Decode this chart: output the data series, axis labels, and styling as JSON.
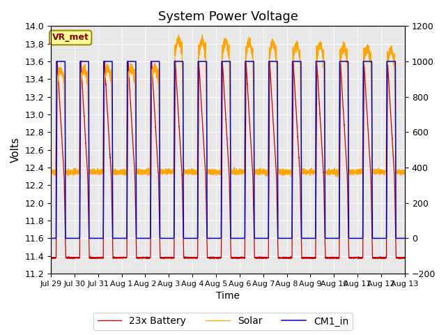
{
  "title": "System Power Voltage",
  "xlabel": "Time",
  "ylabel": "Volts",
  "ylim_left": [
    11.2,
    14.0
  ],
  "ylim_right": [
    -200,
    1200
  ],
  "plot_bg_color": "#e8e8e8",
  "colors": {
    "battery": "#cc0000",
    "solar": "#ffa500",
    "cm1": "#0000cc"
  },
  "legend_labels": [
    "23x Battery",
    "Solar",
    "CM1_in"
  ],
  "annotation_text": "VR_met",
  "annotation_box_color": "#ffff99",
  "annotation_box_edge": "#aa8800",
  "x_tick_labels": [
    "Jul 29",
    "Jul 30",
    "Jul 31",
    "Aug 1",
    "Aug 2",
    "Aug 3",
    "Aug 4",
    "Aug 5",
    "Aug 6",
    "Aug 7",
    "Aug 8",
    "Aug 9",
    "Aug 10",
    "Aug 11",
    "Aug 12",
    "Aug 13"
  ],
  "yticks_left": [
    11.2,
    11.4,
    11.6,
    11.8,
    12.0,
    12.2,
    12.4,
    12.6,
    12.8,
    13.0,
    13.2,
    13.4,
    13.6,
    13.8,
    14.0
  ],
  "yticks_right": [
    -200,
    0,
    200,
    400,
    600,
    800,
    1000,
    1200
  ],
  "num_days": 16,
  "battery_min": 11.38,
  "battery_max": 12.3,
  "battery_charged": 13.6,
  "cm1_low": 11.6,
  "cm1_high": 13.6,
  "solar_base": 12.35,
  "solar_peak_early": 13.5,
  "solar_peak_late": 13.85
}
